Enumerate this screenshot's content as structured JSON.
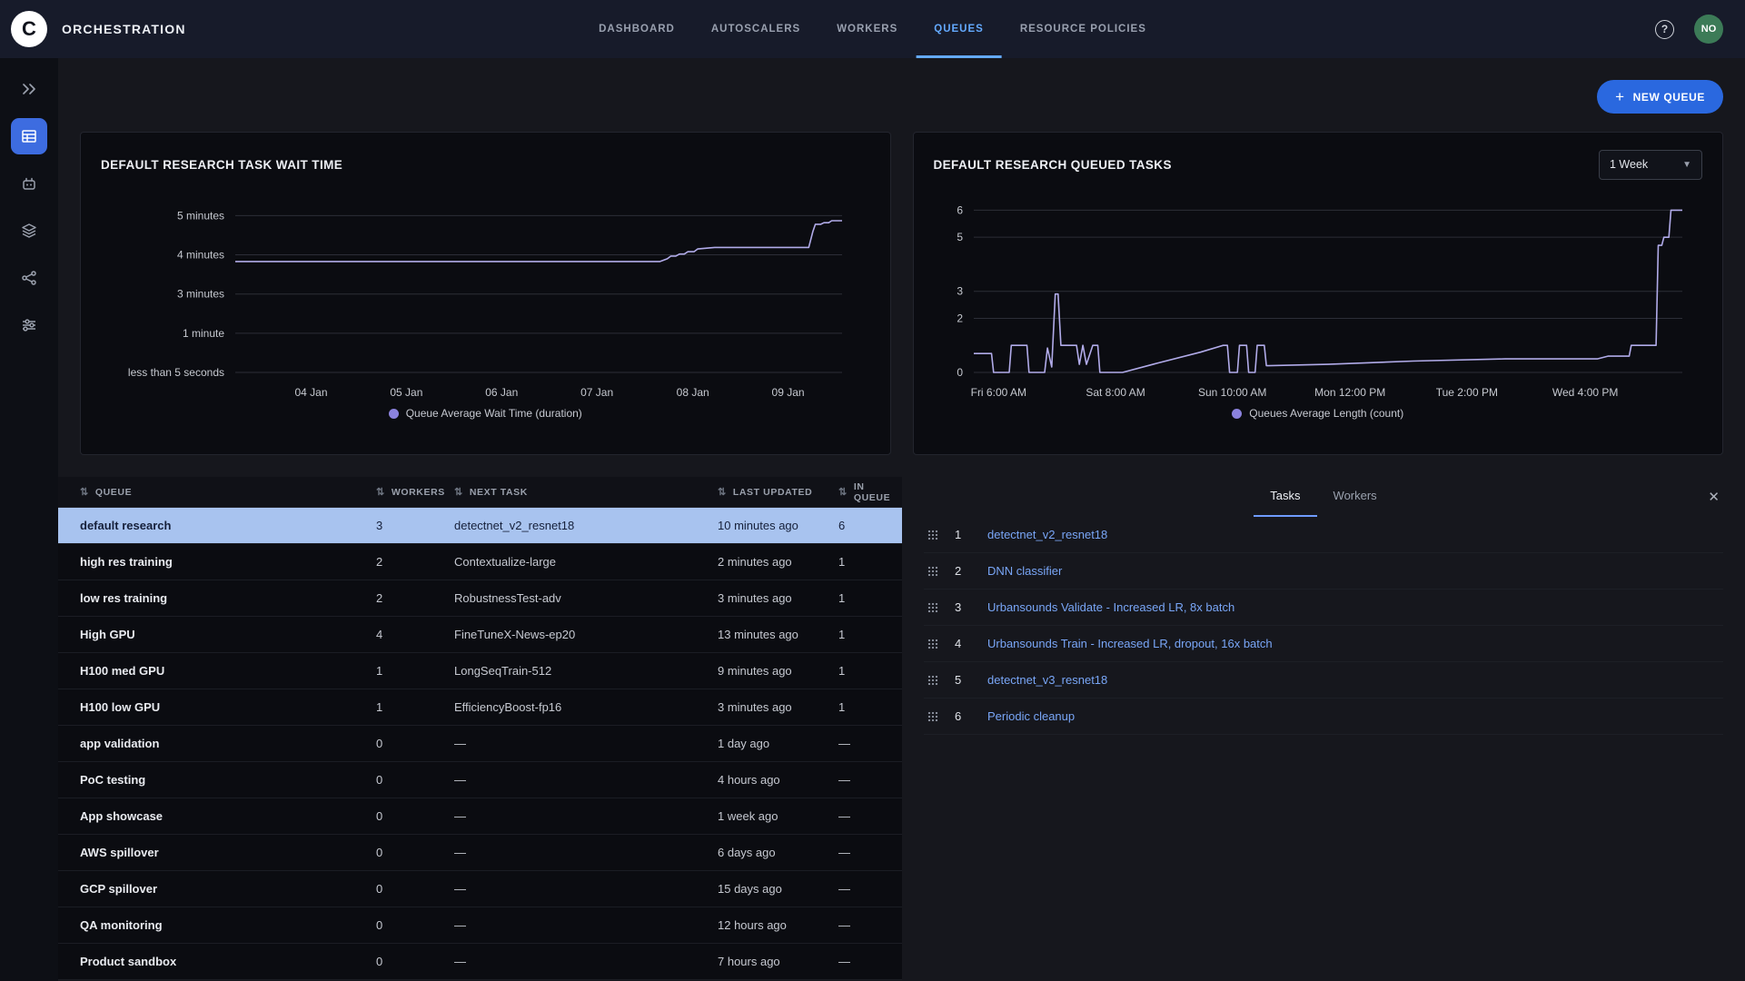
{
  "header": {
    "app_title": "ORCHESTRATION",
    "nav": [
      {
        "label": "DASHBOARD",
        "active": false
      },
      {
        "label": "AUTOSCALERS",
        "active": false
      },
      {
        "label": "WORKERS",
        "active": false
      },
      {
        "label": "QUEUES",
        "active": true
      },
      {
        "label": "RESOURCE POLICIES",
        "active": false
      }
    ],
    "help_icon": "question-circle-icon",
    "avatar_initials": "NO",
    "avatar_color": "#3c7b57"
  },
  "sidebar": {
    "items": [
      {
        "icon": "double-chevron-icon",
        "active": false
      },
      {
        "icon": "queues-grid-icon",
        "active": true
      },
      {
        "icon": "robot-worker-icon",
        "active": false
      },
      {
        "icon": "layers-icon",
        "active": false
      },
      {
        "icon": "pipeline-nodes-icon",
        "active": false
      },
      {
        "icon": "sliders-icon",
        "active": false
      }
    ]
  },
  "toolbar": {
    "new_queue_label": "NEW QUEUE",
    "plus_icon": "plus-icon"
  },
  "colors": {
    "accent_blue": "#2a68df",
    "active_tab_blue": "#64aaff",
    "link_blue": "#79a6f7",
    "selected_row_bg": "#a8c3ef",
    "chart_line": "#b1abe9",
    "legend_dot": "#8b82dd"
  },
  "chart_data": [
    {
      "type": "line",
      "title": "DEFAULT RESEARCH TASK WAIT TIME",
      "legend": "Queue Average Wait Time (duration)",
      "line_color": "#b1abe9",
      "ylim": [
        0,
        4.45
      ],
      "y_ticks": [
        {
          "v": 0,
          "label": "less than 5 seconds"
        },
        {
          "v": 1,
          "label": "1 minute"
        },
        {
          "v": 2,
          "label": "3 minutes"
        },
        {
          "v": 3,
          "label": "4 minutes"
        },
        {
          "v": 4,
          "label": "5 minutes"
        }
      ],
      "x_ticks": [
        {
          "pos": 0.125,
          "label": "04 Jan"
        },
        {
          "pos": 0.282,
          "label": "05 Jan"
        },
        {
          "pos": 0.439,
          "label": "06 Jan"
        },
        {
          "pos": 0.596,
          "label": "07 Jan"
        },
        {
          "pos": 0.754,
          "label": "08 Jan"
        },
        {
          "pos": 0.911,
          "label": "09 Jan"
        }
      ],
      "points": [
        [
          0,
          2.83
        ],
        [
          0.7,
          2.83
        ],
        [
          0.712,
          2.9
        ],
        [
          0.718,
          2.97
        ],
        [
          0.726,
          2.97
        ],
        [
          0.732,
          3.02
        ],
        [
          0.74,
          3.02
        ],
        [
          0.746,
          3.08
        ],
        [
          0.756,
          3.08
        ],
        [
          0.762,
          3.15
        ],
        [
          0.79,
          3.19
        ],
        [
          0.945,
          3.19
        ],
        [
          0.952,
          3.6
        ],
        [
          0.956,
          3.78
        ],
        [
          0.965,
          3.78
        ],
        [
          0.97,
          3.82
        ],
        [
          0.978,
          3.82
        ],
        [
          0.983,
          3.87
        ],
        [
          1,
          3.87
        ]
      ]
    },
    {
      "type": "line",
      "title": "DEFAULT RESEARCH QUEUED TASKS",
      "legend": "Queues Average Length (count)",
      "range_selector": "1 Week",
      "line_color": "#b1abe9",
      "ylim": [
        0,
        6.45
      ],
      "y_ticks": [
        {
          "v": 0,
          "label": "0"
        },
        {
          "v": 2,
          "label": "2"
        },
        {
          "v": 3,
          "label": "3"
        },
        {
          "v": 5,
          "label": "5"
        },
        {
          "v": 6,
          "label": "6"
        }
      ],
      "x_ticks": [
        {
          "pos": 0.035,
          "label": "Fri 6:00 AM"
        },
        {
          "pos": 0.2,
          "label": "Sat 8:00 AM"
        },
        {
          "pos": 0.365,
          "label": "Sun 10:00 AM"
        },
        {
          "pos": 0.531,
          "label": "Mon 12:00 PM"
        },
        {
          "pos": 0.696,
          "label": "Tue 2:00 PM"
        },
        {
          "pos": 0.863,
          "label": "Wed 4:00 PM"
        }
      ],
      "points": [
        [
          0,
          0.7
        ],
        [
          0.025,
          0.7
        ],
        [
          0.028,
          0
        ],
        [
          0.05,
          0
        ],
        [
          0.053,
          1
        ],
        [
          0.075,
          1
        ],
        [
          0.078,
          0
        ],
        [
          0.1,
          0
        ],
        [
          0.104,
          0.9
        ],
        [
          0.11,
          0.2
        ],
        [
          0.115,
          2.9
        ],
        [
          0.119,
          2.9
        ],
        [
          0.123,
          1
        ],
        [
          0.145,
          1
        ],
        [
          0.149,
          0.3
        ],
        [
          0.154,
          1
        ],
        [
          0.159,
          0.3
        ],
        [
          0.168,
          1
        ],
        [
          0.175,
          1
        ],
        [
          0.178,
          0
        ],
        [
          0.21,
          0
        ],
        [
          0.26,
          0.35
        ],
        [
          0.32,
          0.75
        ],
        [
          0.352,
          1
        ],
        [
          0.358,
          1
        ],
        [
          0.361,
          0
        ],
        [
          0.372,
          0
        ],
        [
          0.375,
          1
        ],
        [
          0.385,
          1
        ],
        [
          0.388,
          0
        ],
        [
          0.397,
          0
        ],
        [
          0.4,
          1
        ],
        [
          0.41,
          1
        ],
        [
          0.413,
          0.25
        ],
        [
          0.5,
          0.3
        ],
        [
          0.62,
          0.42
        ],
        [
          0.75,
          0.5
        ],
        [
          0.88,
          0.5
        ],
        [
          0.895,
          0.6
        ],
        [
          0.925,
          0.6
        ],
        [
          0.928,
          1
        ],
        [
          0.963,
          1
        ],
        [
          0.966,
          4.7
        ],
        [
          0.971,
          4.7
        ],
        [
          0.974,
          5
        ],
        [
          0.981,
          5
        ],
        [
          0.984,
          6
        ],
        [
          1,
          6
        ]
      ]
    }
  ],
  "queues_table": {
    "columns": [
      "QUEUE",
      "WORKERS",
      "NEXT TASK",
      "LAST UPDATED",
      "IN QUEUE"
    ],
    "sort_icon": "sort-arrows-icon",
    "selected_index": 0,
    "rows": [
      {
        "queue": "default research",
        "workers": "3",
        "next_task": "detectnet_v2_resnet18",
        "last_updated": "10 minutes ago",
        "in_queue": "6"
      },
      {
        "queue": "high res training",
        "workers": "2",
        "next_task": "Contextualize-large",
        "last_updated": "2 minutes ago",
        "in_queue": "1"
      },
      {
        "queue": "low res training",
        "workers": "2",
        "next_task": "RobustnessTest-adv",
        "last_updated": "3 minutes ago",
        "in_queue": "1"
      },
      {
        "queue": "High GPU",
        "workers": "4",
        "next_task": "FineTuneX-News-ep20",
        "last_updated": "13 minutes ago",
        "in_queue": "1"
      },
      {
        "queue": "H100 med GPU",
        "workers": "1",
        "next_task": "LongSeqTrain-512",
        "last_updated": "9 minutes ago",
        "in_queue": "1"
      },
      {
        "queue": "H100 low GPU",
        "workers": "1",
        "next_task": "EfficiencyBoost-fp16",
        "last_updated": "3 minutes ago",
        "in_queue": "1"
      },
      {
        "queue": "app validation",
        "workers": "0",
        "next_task": "—",
        "last_updated": "1 day ago",
        "in_queue": "—"
      },
      {
        "queue": "PoC testing",
        "workers": "0",
        "next_task": "—",
        "last_updated": "4 hours ago",
        "in_queue": "—"
      },
      {
        "queue": "App showcase",
        "workers": "0",
        "next_task": "—",
        "last_updated": "1 week ago",
        "in_queue": "—"
      },
      {
        "queue": "AWS spillover",
        "workers": "0",
        "next_task": "—",
        "last_updated": "6 days ago",
        "in_queue": "—"
      },
      {
        "queue": "GCP spillover",
        "workers": "0",
        "next_task": "—",
        "last_updated": "15 days ago",
        "in_queue": "—"
      },
      {
        "queue": "QA monitoring",
        "workers": "0",
        "next_task": "—",
        "last_updated": "12 hours ago",
        "in_queue": "—"
      },
      {
        "queue": "Product sandbox",
        "workers": "0",
        "next_task": "—",
        "last_updated": "7 hours ago",
        "in_queue": "—"
      }
    ]
  },
  "tasks_panel": {
    "tabs": [
      {
        "label": "Tasks",
        "active": true
      },
      {
        "label": "Workers",
        "active": false
      }
    ],
    "close_icon": "close-icon",
    "drag_icon": "drag-handle-icon",
    "tasks": [
      {
        "num": "1",
        "name": "detectnet_v2_resnet18"
      },
      {
        "num": "2",
        "name": "DNN classifier"
      },
      {
        "num": "3",
        "name": "Urbansounds Validate - Increased LR, 8x batch"
      },
      {
        "num": "4",
        "name": "Urbansounds Train - Increased LR, dropout, 16x batch"
      },
      {
        "num": "5",
        "name": "detectnet_v3_resnet18"
      },
      {
        "num": "6",
        "name": "Periodic cleanup"
      }
    ]
  }
}
